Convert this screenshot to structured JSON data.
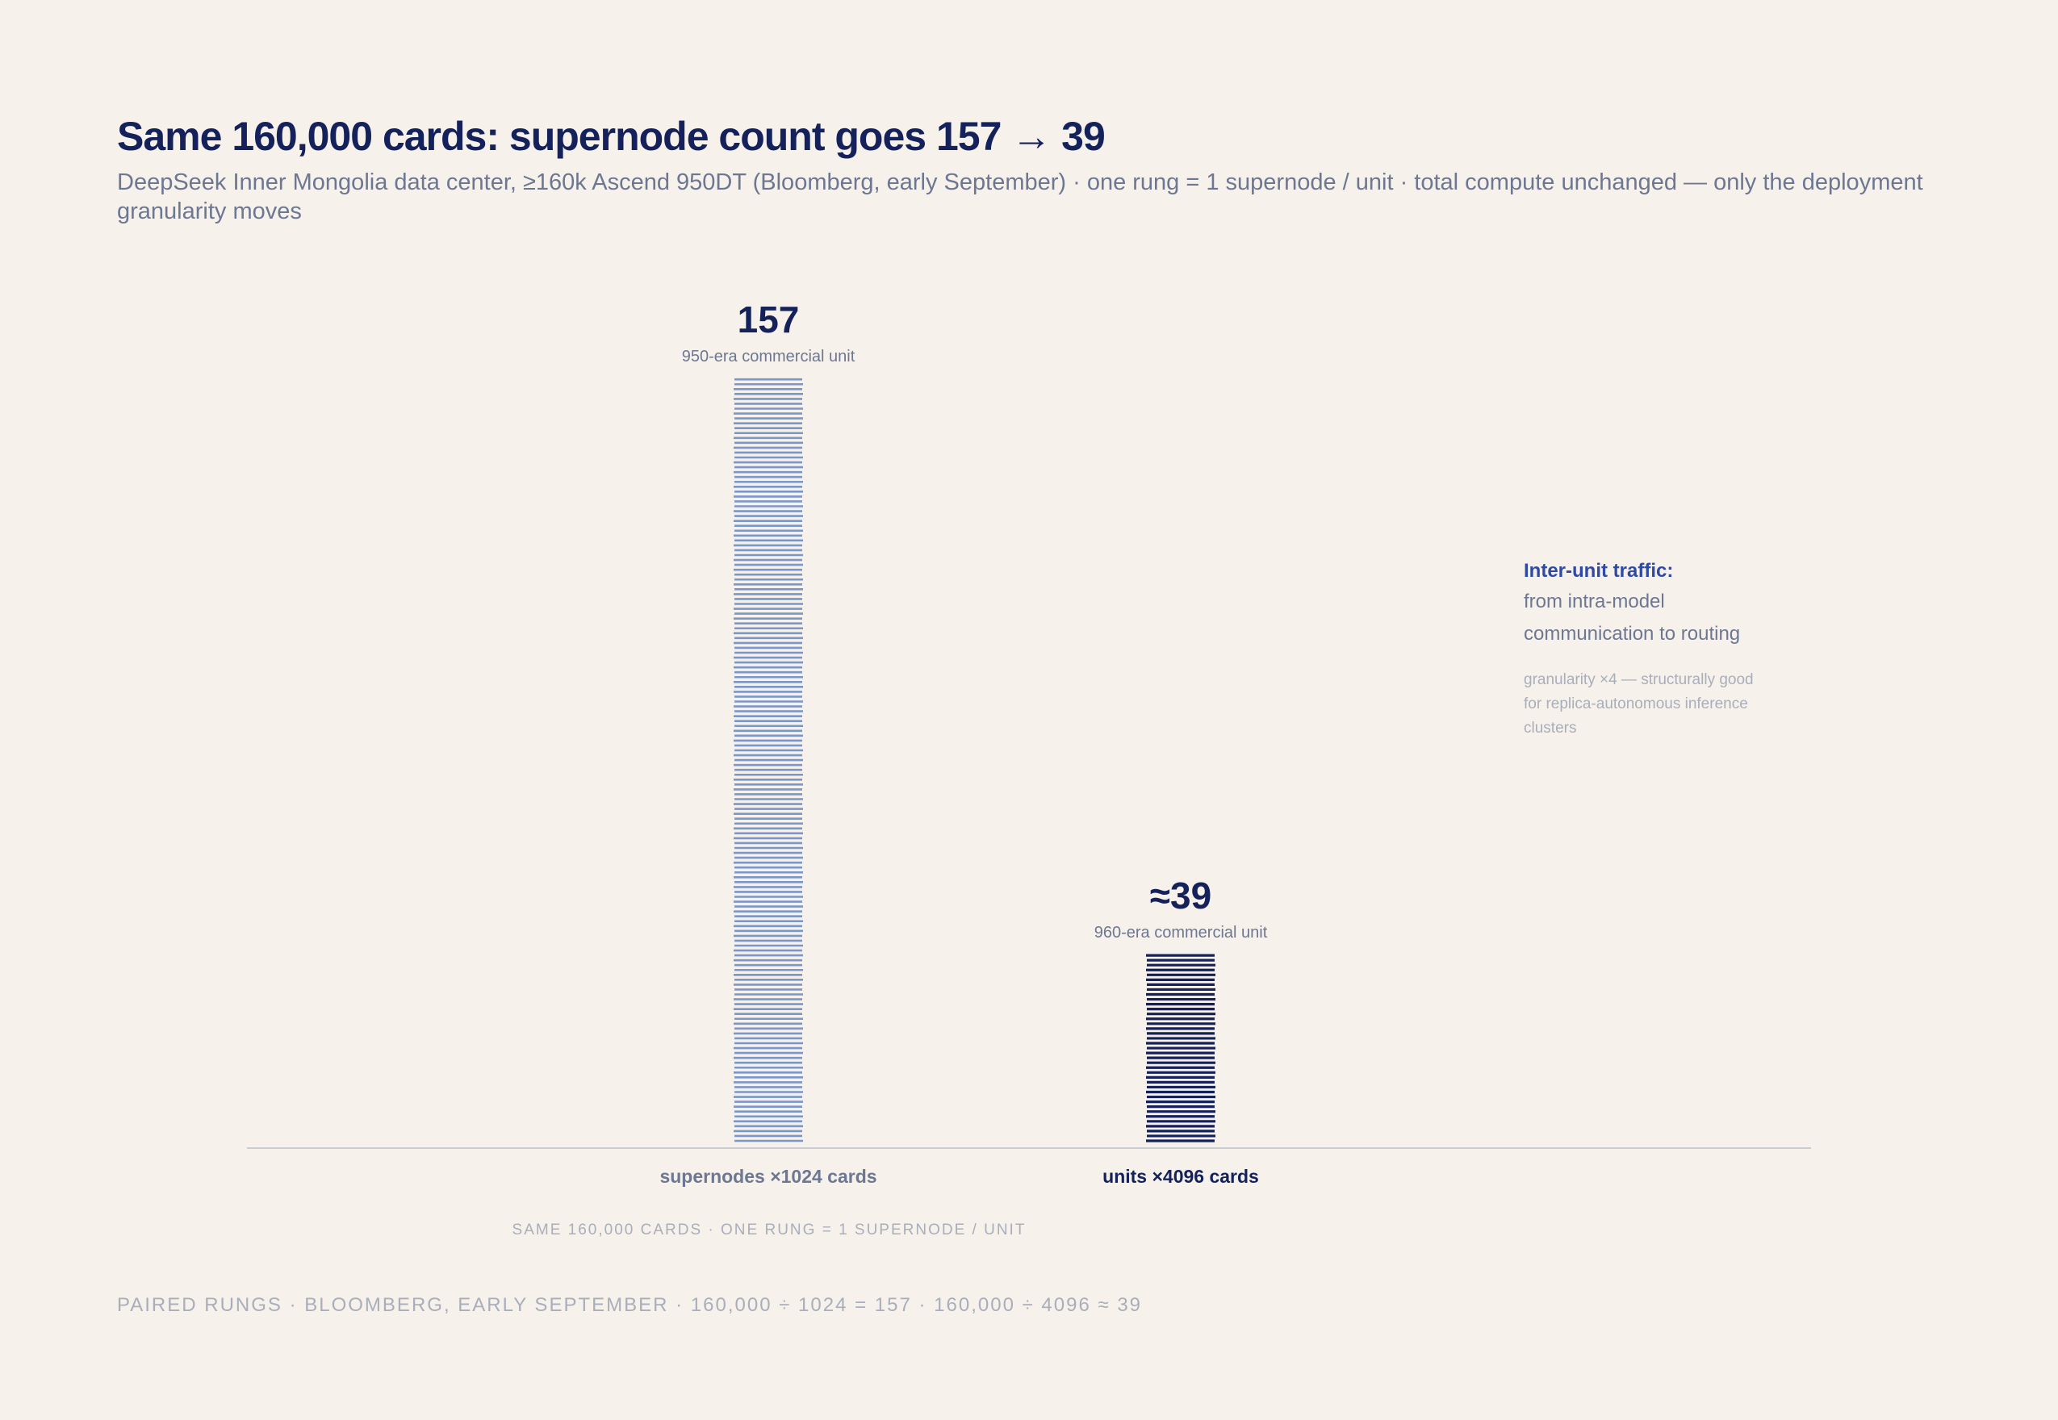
{
  "title": "Same 160,000 cards: supernode count goes 157 → 39",
  "subtitle": "DeepSeek Inner Mongolia data center, ≥160k Ascend 950DT (Bloomberg, early September) · one rung = 1 supernode / unit · total compute unchanged — only the deployment granularity moves",
  "chart_data": {
    "type": "bar",
    "categories": [
      "supernodes ×1024 cards",
      "units ×4096 cards"
    ],
    "values": [
      157,
      39
    ],
    "value_labels": [
      "157",
      "≈39"
    ],
    "sublabels": [
      "950-era commercial unit",
      "960-era commercial unit"
    ],
    "ylim": [
      0,
      160
    ],
    "colors": [
      "#7b96c8",
      "#14215a"
    ],
    "axis_caption": "SAME 160,000 CARDS · ONE RUNG = 1 SUPERNODE / UNIT",
    "grid": false,
    "legend": "none"
  },
  "note": {
    "heading": "Inter-unit traffic:",
    "body": "from intra-model communication to routing",
    "detail": "granularity ×4 — structurally good for replica-autonomous inference clusters"
  },
  "footer": "PAIRED RUNGS · BLOOMBERG, EARLY SEPTEMBER · 160,000 ÷ 1024 = 157 · 160,000 ÷ 4096 ≈ 39"
}
